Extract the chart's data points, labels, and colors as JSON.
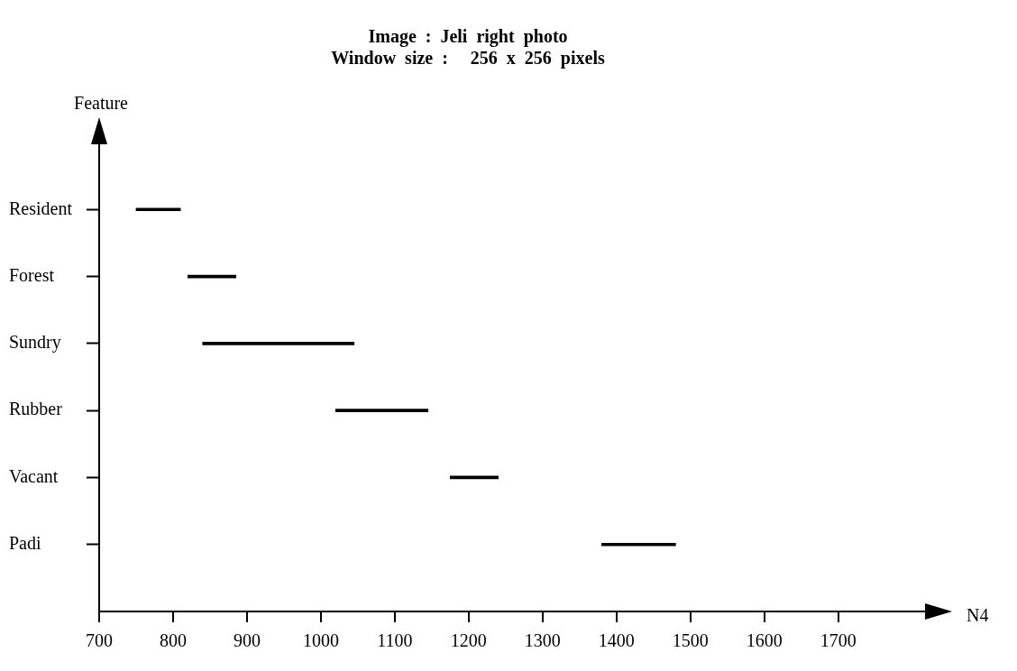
{
  "chart_data": {
    "type": "bar",
    "orientation": "horizontal",
    "title": "Image  :  Jeli  right  photo",
    "subtitle": "Window  size  :     256  x  256  pixels",
    "xlabel": "N4",
    "ylabel": "Feature",
    "categories": [
      "Resident",
      "Forest",
      "Sundry",
      "Rubber",
      "Vacant",
      "Padi"
    ],
    "base": [
      750,
      820,
      840,
      1020,
      1175,
      1380
    ],
    "values": [
      60,
      65,
      205,
      125,
      65,
      100
    ],
    "color": "#000000",
    "xlim": [
      700,
      1820
    ],
    "xticks": [
      700,
      800,
      900,
      1000,
      1100,
      1200,
      1300,
      1400,
      1500,
      1600,
      1700
    ],
    "grid": false,
    "legend": false
  }
}
